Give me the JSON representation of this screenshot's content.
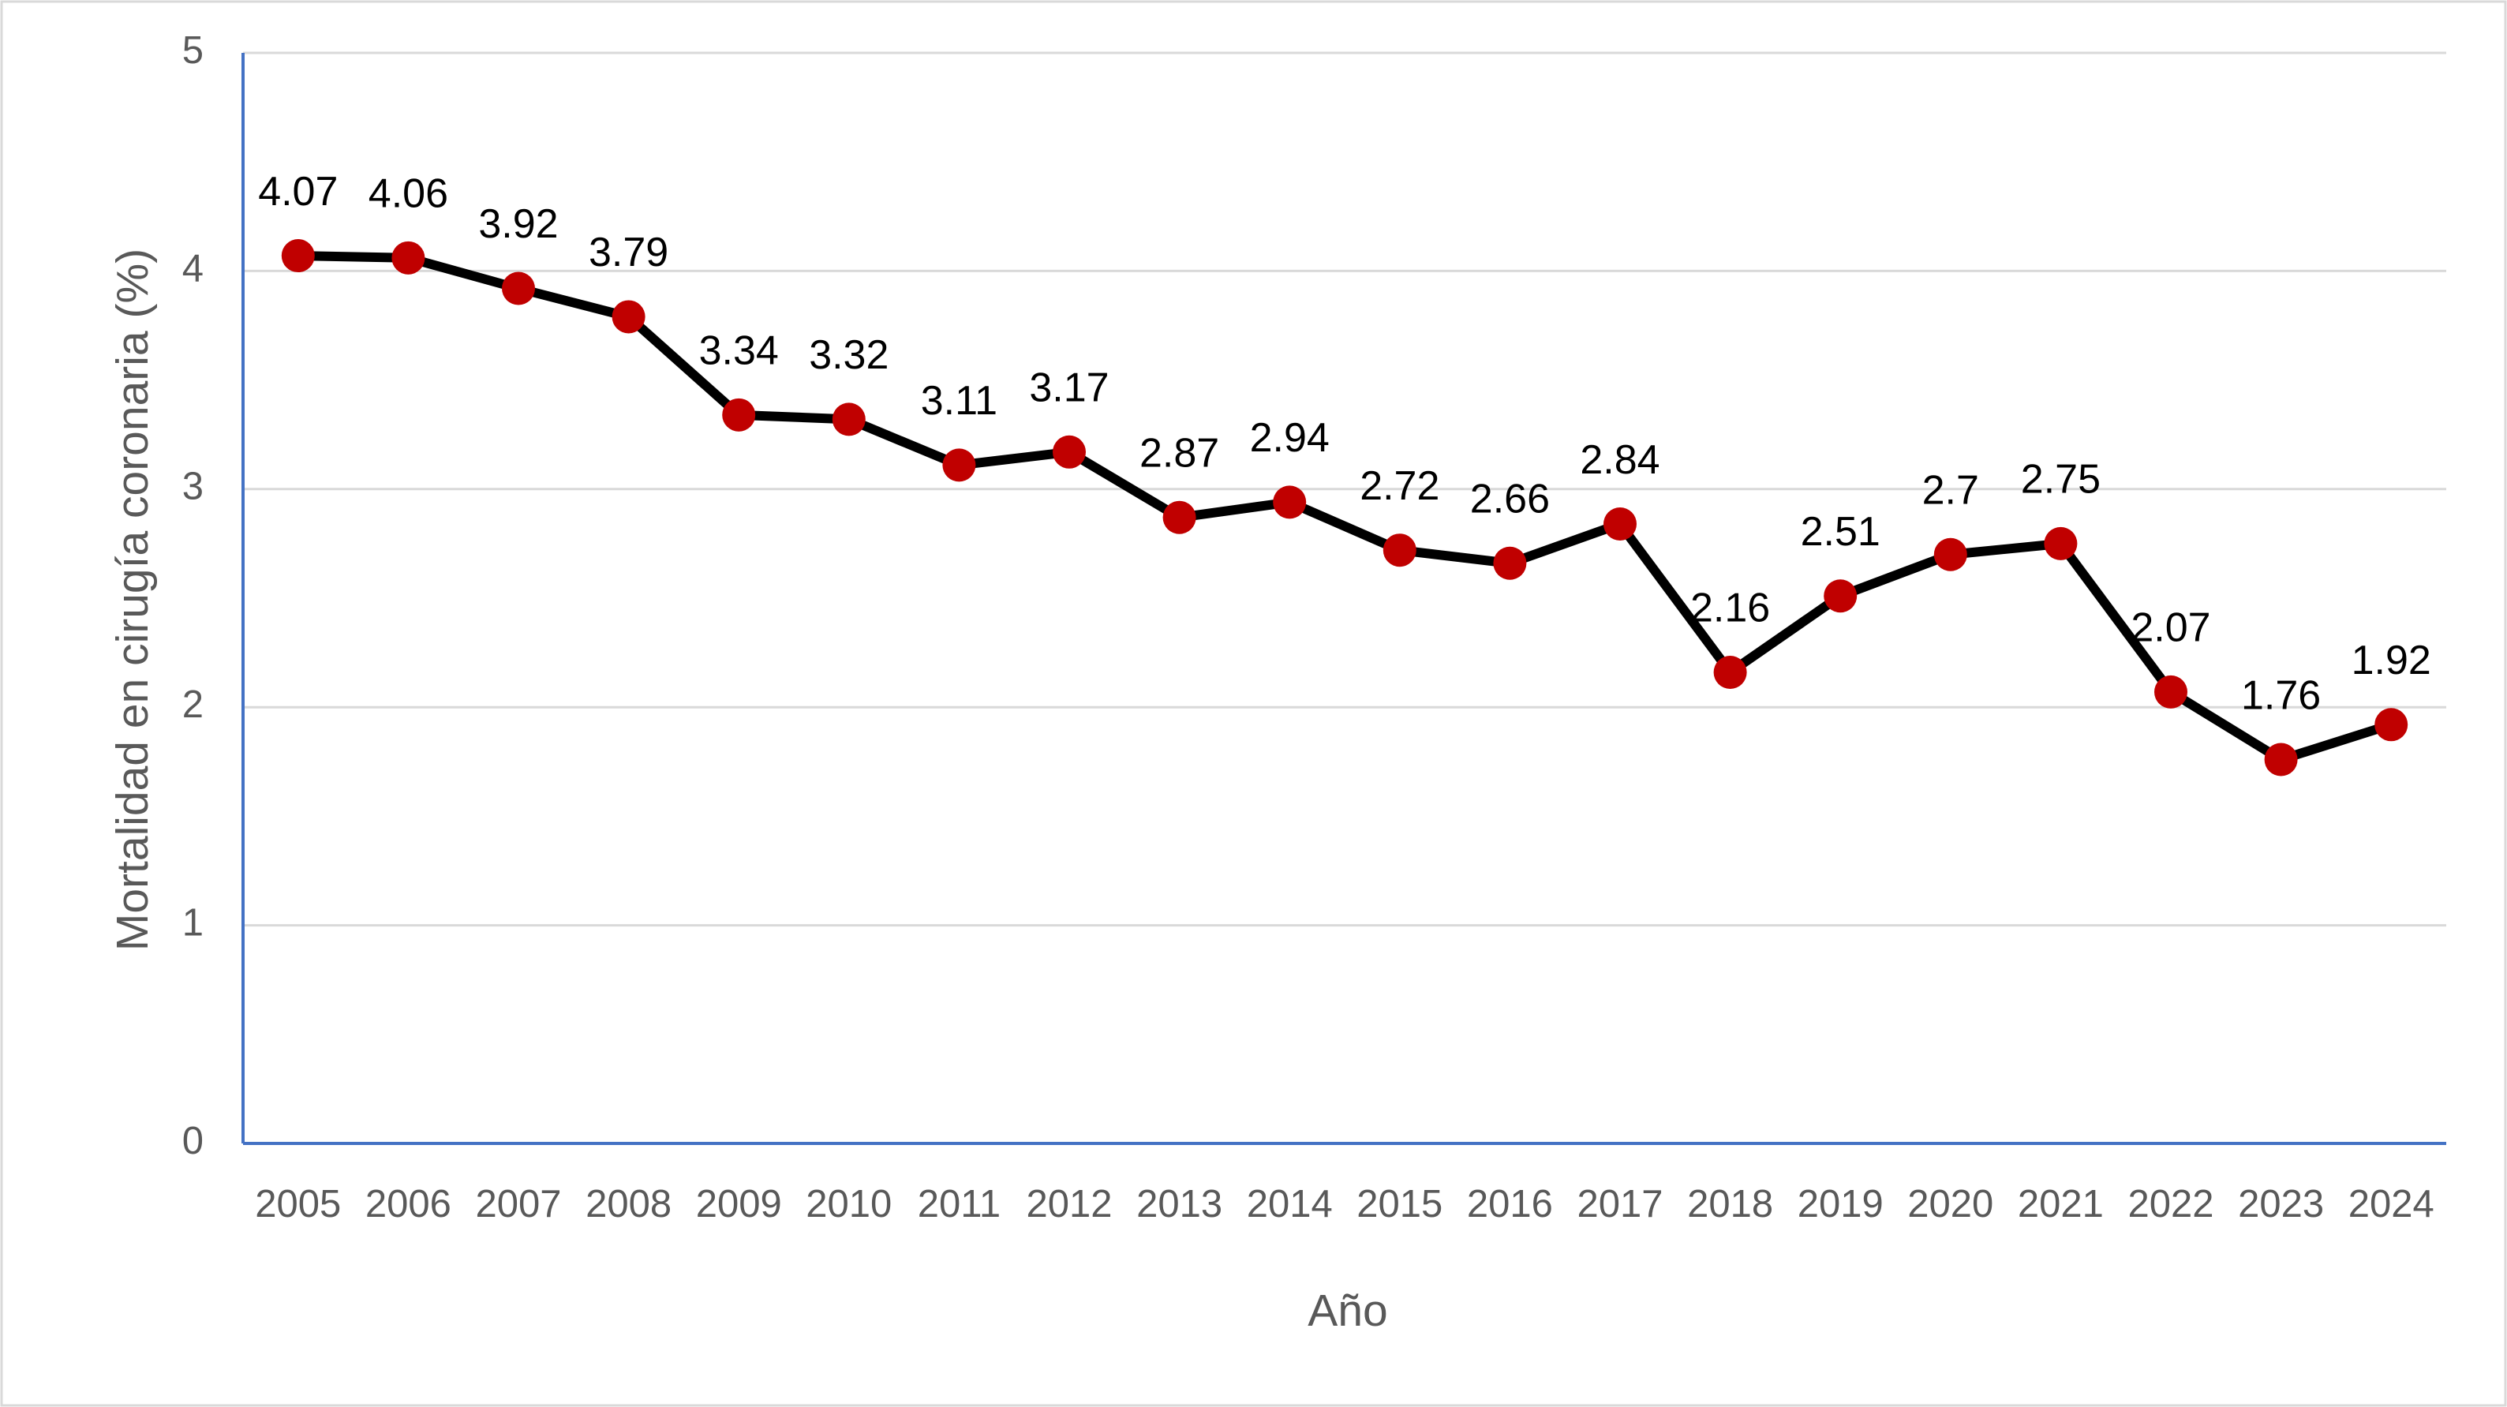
{
  "chart_data": {
    "type": "line",
    "x_label": "Año",
    "y_label": "Mortalidad en cirugía coronaria (%)",
    "categories": [
      "2005",
      "2006",
      "2007",
      "2008",
      "2009",
      "2010",
      "2011",
      "2012",
      "2013",
      "2014",
      "2015",
      "2016",
      "2017",
      "2018",
      "2019",
      "2020",
      "2021",
      "2022",
      "2023",
      "2024"
    ],
    "values": [
      4.07,
      4.06,
      3.92,
      3.79,
      3.34,
      3.32,
      3.11,
      3.17,
      2.87,
      2.94,
      2.72,
      2.66,
      2.84,
      2.16,
      2.51,
      2.7,
      2.75,
      2.07,
      1.76,
      1.92
    ],
    "line_color": "#000000",
    "marker_color": "#c00000",
    "ylim": [
      0,
      5
    ],
    "yticks": [
      0,
      1,
      2,
      3,
      4,
      5
    ],
    "grid": true
  }
}
